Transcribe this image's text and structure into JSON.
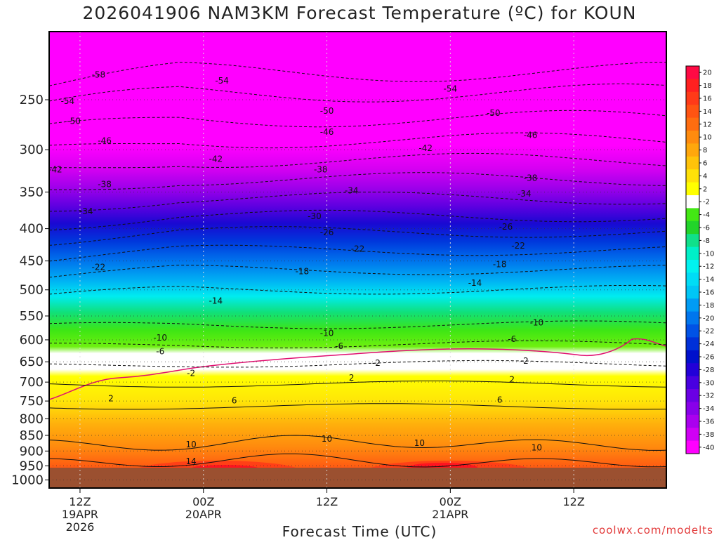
{
  "chart_data": {
    "type": "heatmap",
    "title": "2026041906 NAM3KM Forecast Temperature (ºC) for KOUN",
    "xlabel": "Forecast Time (UTC)",
    "ylabel": "",
    "credit": "coolwx.com/modelts",
    "x_range_hours": [
      -2.5,
      47.5
    ],
    "y_range_hpa": [
      195,
      1030
    ],
    "pressure_ticks": [
      250,
      300,
      350,
      400,
      450,
      500,
      550,
      600,
      650,
      700,
      750,
      800,
      850,
      900,
      950,
      1000
    ],
    "time_ticks": [
      {
        "hour": 0,
        "lines": [
          "12Z",
          "19APR",
          "2026"
        ]
      },
      {
        "hour": 10,
        "lines": [
          "00Z",
          "20APR"
        ]
      },
      {
        "hour": 20,
        "lines": [
          "12Z"
        ]
      },
      {
        "hour": 30,
        "lines": [
          "00Z",
          "21APR"
        ]
      },
      {
        "hour": 40,
        "lines": [
          "12Z"
        ]
      }
    ],
    "contour_levels": [
      -58,
      -54,
      -50,
      -46,
      -42,
      -38,
      -34,
      -30,
      -26,
      -22,
      -18,
      -14,
      -10,
      -6,
      -2,
      2,
      6,
      10,
      14
    ],
    "contour_labels": [
      {
        "t": "-58",
        "h": 1.5,
        "p": 228
      },
      {
        "t": "-54",
        "h": 11.5,
        "p": 233
      },
      {
        "t": "-54",
        "h": -1,
        "p": 251
      },
      {
        "t": "-54",
        "h": 30,
        "p": 240
      },
      {
        "t": "-50",
        "h": -0.5,
        "p": 270
      },
      {
        "t": "-50",
        "h": 20,
        "p": 260
      },
      {
        "t": "-50",
        "h": 33.5,
        "p": 262
      },
      {
        "t": "-46",
        "h": 2,
        "p": 290
      },
      {
        "t": "-46",
        "h": 20,
        "p": 281
      },
      {
        "t": "-46",
        "h": 36.5,
        "p": 284
      },
      {
        "t": "-42",
        "h": -2,
        "p": 322
      },
      {
        "t": "-42",
        "h": 11,
        "p": 310
      },
      {
        "t": "-42",
        "h": 28,
        "p": 298
      },
      {
        "t": "-38",
        "h": 2,
        "p": 340
      },
      {
        "t": "-38",
        "h": 19.5,
        "p": 322
      },
      {
        "t": "-38",
        "h": 36.5,
        "p": 332
      },
      {
        "t": "-34",
        "h": 0.5,
        "p": 375
      },
      {
        "t": "-34",
        "h": 22,
        "p": 348
      },
      {
        "t": "-34",
        "h": 36,
        "p": 352
      },
      {
        "t": "-30",
        "h": 19,
        "p": 382
      },
      {
        "t": "-26",
        "h": 20,
        "p": 405
      },
      {
        "t": "-26",
        "h": 34.5,
        "p": 397
      },
      {
        "t": "-22",
        "h": 1.5,
        "p": 460
      },
      {
        "t": "-22",
        "h": 22.5,
        "p": 430
      },
      {
        "t": "-22",
        "h": 35.5,
        "p": 425
      },
      {
        "t": "-18",
        "h": 18,
        "p": 467
      },
      {
        "t": "-18",
        "h": 34,
        "p": 455
      },
      {
        "t": "-14",
        "h": 11,
        "p": 520
      },
      {
        "t": "-14",
        "h": 32,
        "p": 487
      },
      {
        "t": "-10",
        "h": 6.5,
        "p": 595
      },
      {
        "t": "-10",
        "h": 20,
        "p": 585
      },
      {
        "t": "-10",
        "h": 37,
        "p": 563
      },
      {
        "t": "-6",
        "h": 6.5,
        "p": 625
      },
      {
        "t": "-6",
        "h": 21,
        "p": 613
      },
      {
        "t": "-6",
        "h": 35,
        "p": 598
      },
      {
        "t": "-2",
        "h": 9,
        "p": 677
      },
      {
        "t": "-2",
        "h": 24,
        "p": 652
      },
      {
        "t": "-2",
        "h": 36,
        "p": 647
      },
      {
        "t": "2",
        "h": 2.5,
        "p": 742
      },
      {
        "t": "2",
        "h": 22,
        "p": 688
      },
      {
        "t": "2",
        "h": 35,
        "p": 693
      },
      {
        "t": "6",
        "h": 12.5,
        "p": 748
      },
      {
        "t": "6",
        "h": 34,
        "p": 746
      },
      {
        "t": "10",
        "h": 9,
        "p": 878
      },
      {
        "t": "10",
        "h": 20,
        "p": 860
      },
      {
        "t": "10",
        "h": 27.5,
        "p": 873
      },
      {
        "t": "10",
        "h": 37,
        "p": 888
      },
      {
        "t": "14",
        "h": 9,
        "p": 933
      }
    ],
    "colorbar": {
      "levels": [
        20,
        18,
        16,
        14,
        12,
        10,
        8,
        6,
        4,
        2,
        -2,
        -4,
        -6,
        -8,
        -10,
        -12,
        -14,
        -16,
        -18,
        -20,
        -22,
        -24,
        -26,
        -28,
        -30,
        -32,
        -34,
        -36,
        -38,
        -40
      ],
      "colors": [
        "#ff0a44",
        "#ff2020",
        "#ff3a18",
        "#ff5412",
        "#ff6d10",
        "#ff8b0e",
        "#ffa70c",
        "#ffc30a",
        "#ffe108",
        "#ffff00",
        "#ffffff",
        "#43e814",
        "#22d42a",
        "#10e08a",
        "#00f0c8",
        "#00f2f0",
        "#00dcf6",
        "#00c6f6",
        "#009cf4",
        "#0076ee",
        "#0052e6",
        "#0030d8",
        "#0010cc",
        "#2200d8",
        "#4800e0",
        "#6a00e4",
        "#8800ea",
        "#aa00ee",
        "#d000f4",
        "#ff00ff"
      ]
    }
  }
}
